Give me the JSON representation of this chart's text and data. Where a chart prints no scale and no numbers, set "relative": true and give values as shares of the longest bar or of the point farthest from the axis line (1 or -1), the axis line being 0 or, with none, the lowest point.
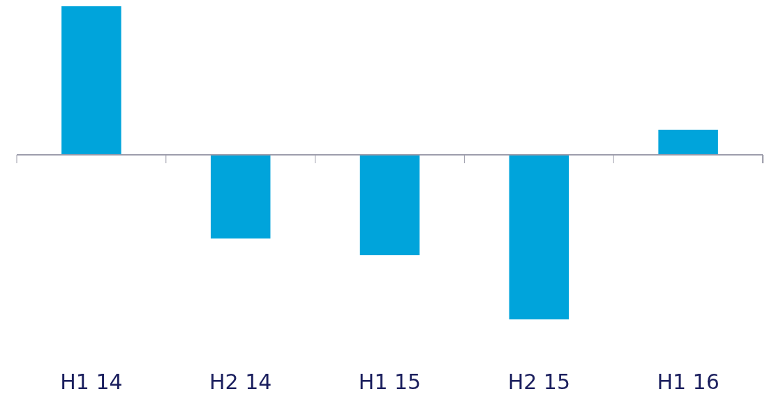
{
  "chart_data": {
    "type": "bar",
    "relative": true,
    "categories": [
      "H1 14",
      "H2 14",
      "H1 15",
      "H2 15",
      "H1 16"
    ],
    "values": [
      0.903,
      -0.508,
      -0.61,
      -1,
      0.153
    ],
    "color": "#00a4db"
  }
}
